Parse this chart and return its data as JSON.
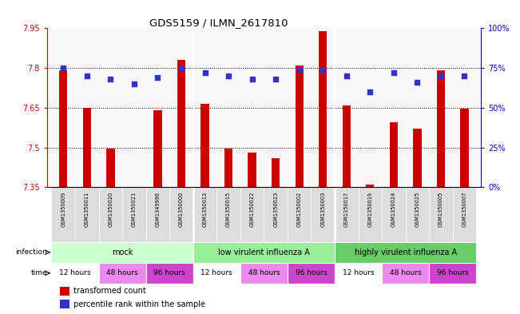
{
  "title": "GDS5159 / ILMN_2617810",
  "samples": [
    "GSM1350009",
    "GSM1350011",
    "GSM1350020",
    "GSM1350021",
    "GSM1349996",
    "GSM1350000",
    "GSM1350013",
    "GSM1350015",
    "GSM1350022",
    "GSM1350023",
    "GSM1350002",
    "GSM1350003",
    "GSM1350017",
    "GSM1350019",
    "GSM1350024",
    "GSM1350025",
    "GSM1350005",
    "GSM1350007"
  ],
  "bar_values": [
    7.79,
    7.65,
    7.495,
    7.35,
    7.64,
    7.83,
    7.665,
    7.495,
    7.48,
    7.46,
    7.81,
    7.94,
    7.66,
    7.36,
    7.595,
    7.57,
    7.79,
    7.645
  ],
  "dot_values": [
    75,
    70,
    68,
    65,
    69,
    75,
    72,
    70,
    68,
    68,
    74,
    74,
    70,
    60,
    72,
    66,
    70,
    70
  ],
  "ylim": [
    7.35,
    7.95
  ],
  "yticks": [
    7.35,
    7.5,
    7.65,
    7.8,
    7.95
  ],
  "right_yticks": [
    0,
    25,
    50,
    75,
    100
  ],
  "right_ytick_labels": [
    "0%",
    "25%",
    "50%",
    "75%",
    "100%"
  ],
  "bar_color": "#cc0000",
  "dot_color": "#3333cc",
  "bar_width": 0.35,
  "infection_groups": [
    {
      "label": "mock",
      "start": 0,
      "end": 6,
      "color": "#ccffcc"
    },
    {
      "label": "low virulent influenza A",
      "start": 6,
      "end": 12,
      "color": "#99ee99"
    },
    {
      "label": "highly virulent influenza A",
      "start": 12,
      "end": 18,
      "color": "#66cc66"
    }
  ],
  "time_groups": [
    {
      "label": "12 hours",
      "start": 0,
      "end": 2,
      "color": "#ffffff"
    },
    {
      "label": "48 hours",
      "start": 2,
      "end": 4,
      "color": "#ee88ee"
    },
    {
      "label": "96 hours",
      "start": 4,
      "end": 6,
      "color": "#cc44cc"
    },
    {
      "label": "12 hours",
      "start": 6,
      "end": 8,
      "color": "#ffffff"
    },
    {
      "label": "48 hours",
      "start": 8,
      "end": 10,
      "color": "#ee88ee"
    },
    {
      "label": "96 hours",
      "start": 10,
      "end": 12,
      "color": "#cc44cc"
    },
    {
      "label": "12 hours",
      "start": 12,
      "end": 14,
      "color": "#ffffff"
    },
    {
      "label": "48 hours",
      "start": 14,
      "end": 16,
      "color": "#ee88ee"
    },
    {
      "label": "96 hours",
      "start": 16,
      "end": 18,
      "color": "#cc44cc"
    }
  ],
  "background_color": "#ffffff",
  "label_color_red": "#cc0000",
  "label_color_blue": "#0000cc",
  "grid_yticks": [
    7.5,
    7.65,
    7.8
  ]
}
